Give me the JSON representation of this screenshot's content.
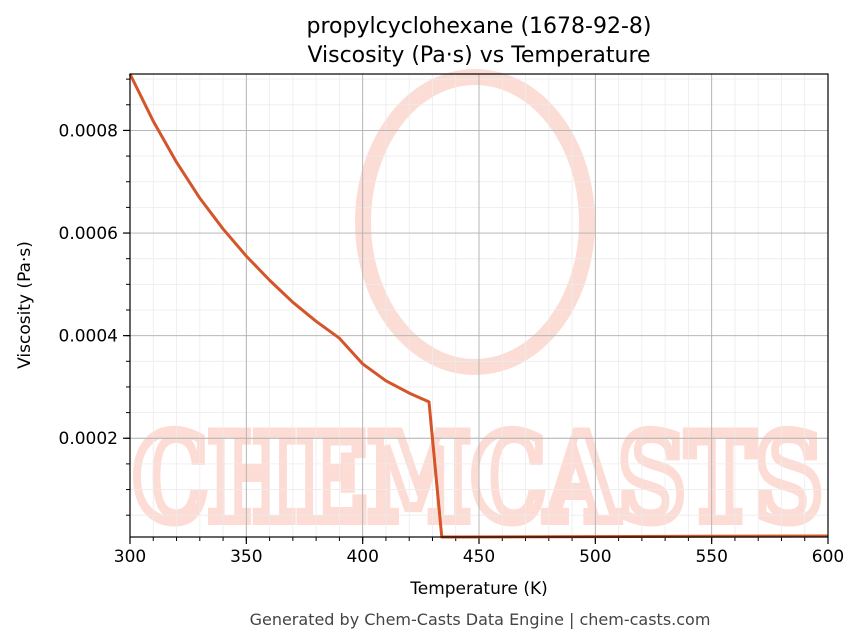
{
  "header": {
    "title_line1": "propylcyclohexane (1678-92-8)",
    "title_line2": "Viscosity (Pa·s) vs Temperature"
  },
  "footer": {
    "text": "Generated by Chem-Casts Data Engine | chem-casts.com"
  },
  "watermark": {
    "text": "CHEMCASTS",
    "color": "#fcd9d0"
  },
  "chart_data": {
    "type": "line",
    "title": "propylcyclohexane (1678-92-8)\nViscosity (Pa·s) vs Temperature",
    "xlabel": "Temperature (K)",
    "ylabel": "Viscosity (Pa·s)",
    "xlim": [
      300,
      600
    ],
    "ylim": [
      7.5e-06,
      0.00091
    ],
    "x_ticks": [
      300,
      350,
      400,
      450,
      500,
      550,
      600
    ],
    "x_tick_labels": [
      "300",
      "350",
      "400",
      "450",
      "500",
      "550",
      "600"
    ],
    "y_ticks": [
      0.0002,
      0.0004,
      0.0006,
      0.0008
    ],
    "y_tick_labels": [
      "0.0002",
      "0.0004",
      "0.0006",
      "0.0008"
    ],
    "grid": true,
    "line_color": "#d4552a",
    "series": [
      {
        "x": [
          300,
          310,
          320,
          330,
          340,
          350,
          360,
          370,
          380,
          390,
          400,
          410,
          420,
          428.5,
          434,
          440,
          500,
          550,
          600
        ],
        "y": [
          0.00091,
          0.000818,
          0.000738,
          0.000668,
          0.000608,
          0.000555,
          0.000508,
          0.000465,
          0.000428,
          0.000395,
          0.000345,
          0.000312,
          0.000288,
          0.000271,
          7.5e-06,
          7.6e-06,
          8.3e-06,
          8.9e-06,
          9.5e-06
        ]
      }
    ]
  }
}
